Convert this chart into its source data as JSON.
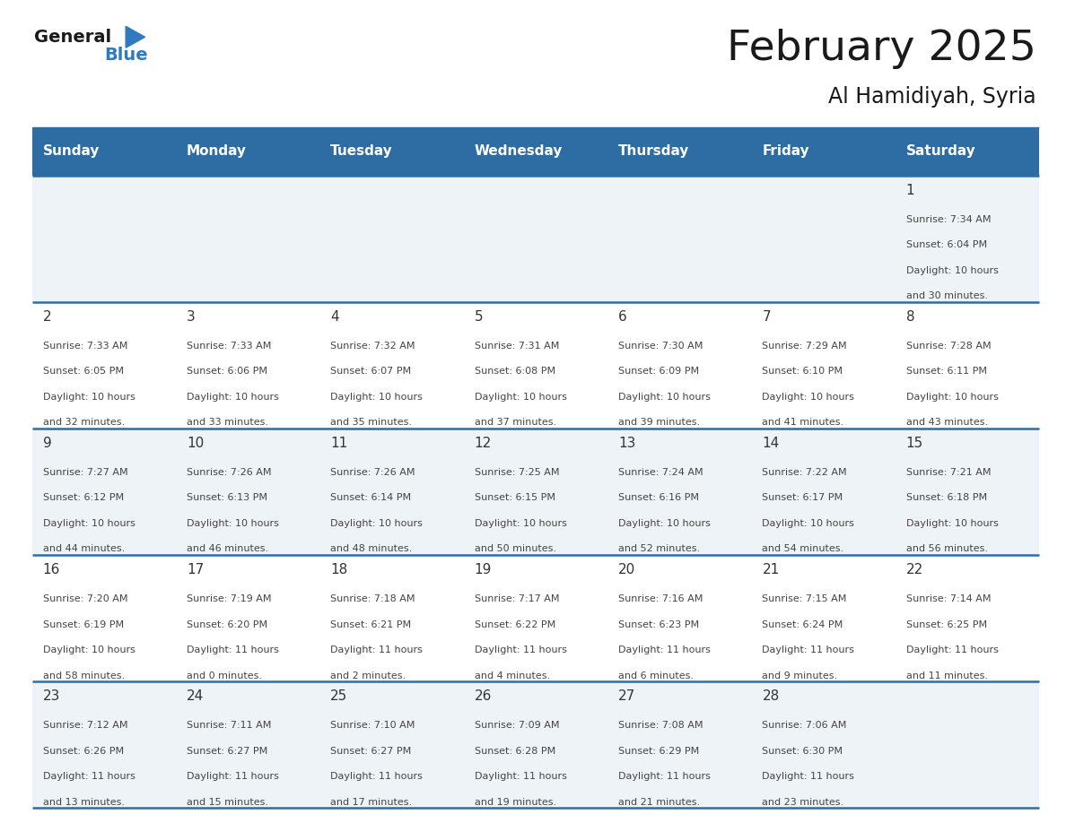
{
  "title": "February 2025",
  "subtitle": "Al Hamidiyah, Syria",
  "days_of_week": [
    "Sunday",
    "Monday",
    "Tuesday",
    "Wednesday",
    "Thursday",
    "Friday",
    "Saturday"
  ],
  "header_bg": "#2E6DA4",
  "header_text_color": "#FFFFFF",
  "row_bg_light": "#EEF3F8",
  "row_bg_white": "#FFFFFF",
  "separator_color": "#2E6DA4",
  "text_color": "#444444",
  "day_num_color": "#333333",
  "calendar_data": [
    [
      null,
      null,
      null,
      null,
      null,
      null,
      {
        "day": "1",
        "sunrise": "7:34 AM",
        "sunset": "6:04 PM",
        "daylight_h": "10 hours",
        "daylight_m": "and 30 minutes."
      }
    ],
    [
      {
        "day": "2",
        "sunrise": "7:33 AM",
        "sunset": "6:05 PM",
        "daylight_h": "10 hours",
        "daylight_m": "and 32 minutes."
      },
      {
        "day": "3",
        "sunrise": "7:33 AM",
        "sunset": "6:06 PM",
        "daylight_h": "10 hours",
        "daylight_m": "and 33 minutes."
      },
      {
        "day": "4",
        "sunrise": "7:32 AM",
        "sunset": "6:07 PM",
        "daylight_h": "10 hours",
        "daylight_m": "and 35 minutes."
      },
      {
        "day": "5",
        "sunrise": "7:31 AM",
        "sunset": "6:08 PM",
        "daylight_h": "10 hours",
        "daylight_m": "and 37 minutes."
      },
      {
        "day": "6",
        "sunrise": "7:30 AM",
        "sunset": "6:09 PM",
        "daylight_h": "10 hours",
        "daylight_m": "and 39 minutes."
      },
      {
        "day": "7",
        "sunrise": "7:29 AM",
        "sunset": "6:10 PM",
        "daylight_h": "10 hours",
        "daylight_m": "and 41 minutes."
      },
      {
        "day": "8",
        "sunrise": "7:28 AM",
        "sunset": "6:11 PM",
        "daylight_h": "10 hours",
        "daylight_m": "and 43 minutes."
      }
    ],
    [
      {
        "day": "9",
        "sunrise": "7:27 AM",
        "sunset": "6:12 PM",
        "daylight_h": "10 hours",
        "daylight_m": "and 44 minutes."
      },
      {
        "day": "10",
        "sunrise": "7:26 AM",
        "sunset": "6:13 PM",
        "daylight_h": "10 hours",
        "daylight_m": "and 46 minutes."
      },
      {
        "day": "11",
        "sunrise": "7:26 AM",
        "sunset": "6:14 PM",
        "daylight_h": "10 hours",
        "daylight_m": "and 48 minutes."
      },
      {
        "day": "12",
        "sunrise": "7:25 AM",
        "sunset": "6:15 PM",
        "daylight_h": "10 hours",
        "daylight_m": "and 50 minutes."
      },
      {
        "day": "13",
        "sunrise": "7:24 AM",
        "sunset": "6:16 PM",
        "daylight_h": "10 hours",
        "daylight_m": "and 52 minutes."
      },
      {
        "day": "14",
        "sunrise": "7:22 AM",
        "sunset": "6:17 PM",
        "daylight_h": "10 hours",
        "daylight_m": "and 54 minutes."
      },
      {
        "day": "15",
        "sunrise": "7:21 AM",
        "sunset": "6:18 PM",
        "daylight_h": "10 hours",
        "daylight_m": "and 56 minutes."
      }
    ],
    [
      {
        "day": "16",
        "sunrise": "7:20 AM",
        "sunset": "6:19 PM",
        "daylight_h": "10 hours",
        "daylight_m": "and 58 minutes."
      },
      {
        "day": "17",
        "sunrise": "7:19 AM",
        "sunset": "6:20 PM",
        "daylight_h": "11 hours",
        "daylight_m": "and 0 minutes."
      },
      {
        "day": "18",
        "sunrise": "7:18 AM",
        "sunset": "6:21 PM",
        "daylight_h": "11 hours",
        "daylight_m": "and 2 minutes."
      },
      {
        "day": "19",
        "sunrise": "7:17 AM",
        "sunset": "6:22 PM",
        "daylight_h": "11 hours",
        "daylight_m": "and 4 minutes."
      },
      {
        "day": "20",
        "sunrise": "7:16 AM",
        "sunset": "6:23 PM",
        "daylight_h": "11 hours",
        "daylight_m": "and 6 minutes."
      },
      {
        "day": "21",
        "sunrise": "7:15 AM",
        "sunset": "6:24 PM",
        "daylight_h": "11 hours",
        "daylight_m": "and 9 minutes."
      },
      {
        "day": "22",
        "sunrise": "7:14 AM",
        "sunset": "6:25 PM",
        "daylight_h": "11 hours",
        "daylight_m": "and 11 minutes."
      }
    ],
    [
      {
        "day": "23",
        "sunrise": "7:12 AM",
        "sunset": "6:26 PM",
        "daylight_h": "11 hours",
        "daylight_m": "and 13 minutes."
      },
      {
        "day": "24",
        "sunrise": "7:11 AM",
        "sunset": "6:27 PM",
        "daylight_h": "11 hours",
        "daylight_m": "and 15 minutes."
      },
      {
        "day": "25",
        "sunrise": "7:10 AM",
        "sunset": "6:27 PM",
        "daylight_h": "11 hours",
        "daylight_m": "and 17 minutes."
      },
      {
        "day": "26",
        "sunrise": "7:09 AM",
        "sunset": "6:28 PM",
        "daylight_h": "11 hours",
        "daylight_m": "and 19 minutes."
      },
      {
        "day": "27",
        "sunrise": "7:08 AM",
        "sunset": "6:29 PM",
        "daylight_h": "11 hours",
        "daylight_m": "and 21 minutes."
      },
      {
        "day": "28",
        "sunrise": "7:06 AM",
        "sunset": "6:30 PM",
        "daylight_h": "11 hours",
        "daylight_m": "and 23 minutes."
      },
      null
    ]
  ]
}
